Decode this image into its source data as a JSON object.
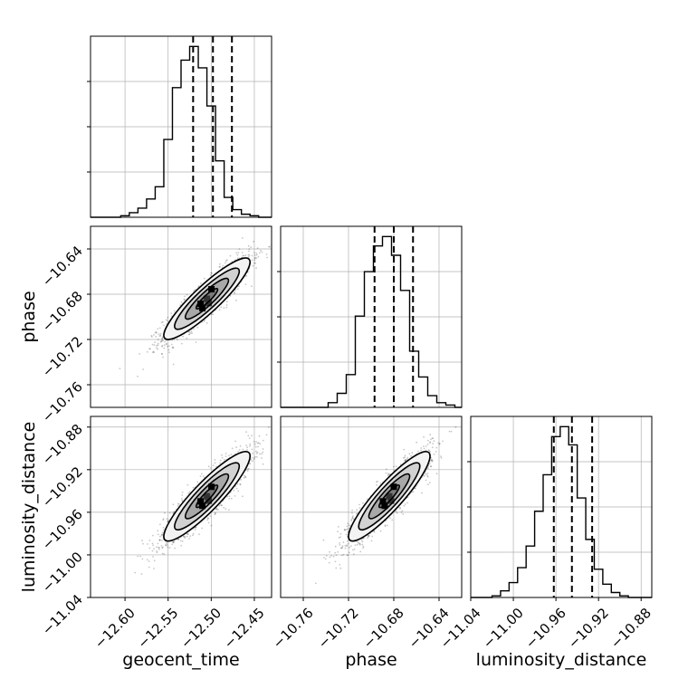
{
  "chart_data": {
    "type": "corner",
    "parameters": [
      "geocent_time",
      "phase",
      "luminosity_distance"
    ],
    "axes": {
      "geocent_time": {
        "label": "geocent_time",
        "range": [
          -12.64,
          -12.43
        ],
        "ticks": [
          -12.6,
          -12.55,
          -12.5,
          -12.45
        ],
        "tick_labels": [
          "−12.60",
          "−12.55",
          "−12.50",
          "−12.45"
        ]
      },
      "phase": {
        "label": "phase",
        "range": [
          -10.78,
          -10.62
        ],
        "ticks": [
          -10.76,
          -10.72,
          -10.68,
          -10.64
        ],
        "tick_labels": [
          "−10.76",
          "−10.72",
          "−10.68",
          "−10.64"
        ]
      },
      "luminosity_distance": {
        "label": "luminosity_distance",
        "range": [
          -11.04,
          -10.87
        ],
        "ticks": [
          -11.04,
          -11.0,
          -10.96,
          -10.92,
          -10.88
        ],
        "tick_labels": [
          "−11.04",
          "−11.00",
          "−10.96",
          "−10.92",
          "−10.88"
        ]
      }
    },
    "histograms": [
      {
        "parameter": "geocent_time",
        "bin_edges": [
          -12.605,
          -12.595,
          -12.585,
          -12.575,
          -12.565,
          -12.555,
          -12.545,
          -12.535,
          -12.525,
          -12.515,
          -12.505,
          -12.495,
          -12.485,
          -12.475,
          -12.465,
          -12.455,
          -12.445,
          -12.435
        ],
        "counts": [
          1,
          3,
          6,
          12,
          20,
          51,
          85,
          103,
          112,
          98,
          73,
          37,
          13,
          5,
          2,
          1,
          0
        ],
        "quantiles": [
          -12.521,
          -12.498,
          -12.476
        ]
      },
      {
        "parameter": "phase",
        "bin_edges": [
          -10.738,
          -10.73,
          -10.722,
          -10.714,
          -10.706,
          -10.698,
          -10.69,
          -10.682,
          -10.674,
          -10.666,
          -10.658,
          -10.65,
          -10.642,
          -10.634,
          -10.626
        ],
        "counts": [
          2,
          6,
          14,
          39,
          58,
          69,
          73,
          65,
          50,
          24,
          13,
          5,
          2,
          1
        ],
        "quantiles": [
          -10.697,
          -10.68,
          -10.663
        ]
      },
      {
        "parameter": "luminosity_distance",
        "bin_edges": [
          -11.02,
          -11.012,
          -11.004,
          -10.996,
          -10.988,
          -10.98,
          -10.972,
          -10.964,
          -10.956,
          -10.948,
          -10.94,
          -10.932,
          -10.924,
          -10.916,
          -10.908,
          -10.9,
          -10.892
        ],
        "counts": [
          1,
          4,
          9,
          18,
          31,
          52,
          74,
          97,
          103,
          92,
          60,
          35,
          17,
          8,
          3,
          1
        ],
        "quantiles": [
          -10.962,
          -10.945,
          -10.926
        ]
      }
    ],
    "scatter_panels": [
      {
        "x": "geocent_time",
        "y": "phase",
        "center": [
          -12.505,
          -10.684
        ],
        "sigma": [
          0.025,
          0.018
        ],
        "correlation": 0.9
      },
      {
        "x": "geocent_time",
        "y": "luminosity_distance",
        "center": [
          -12.505,
          -10.945
        ],
        "sigma": [
          0.025,
          0.021
        ],
        "correlation": 0.9
      },
      {
        "x": "phase",
        "y": "luminosity_distance",
        "center": [
          -10.684,
          -10.945
        ],
        "sigma": [
          0.018,
          0.021
        ],
        "correlation": 0.9
      }
    ],
    "contour_levels_sigma": [
      0.5,
      1.0,
      1.5,
      2.0
    ],
    "grid": true,
    "colors": {
      "line": "#000000",
      "points": "#000000",
      "grid": "#b0b0b0"
    }
  }
}
